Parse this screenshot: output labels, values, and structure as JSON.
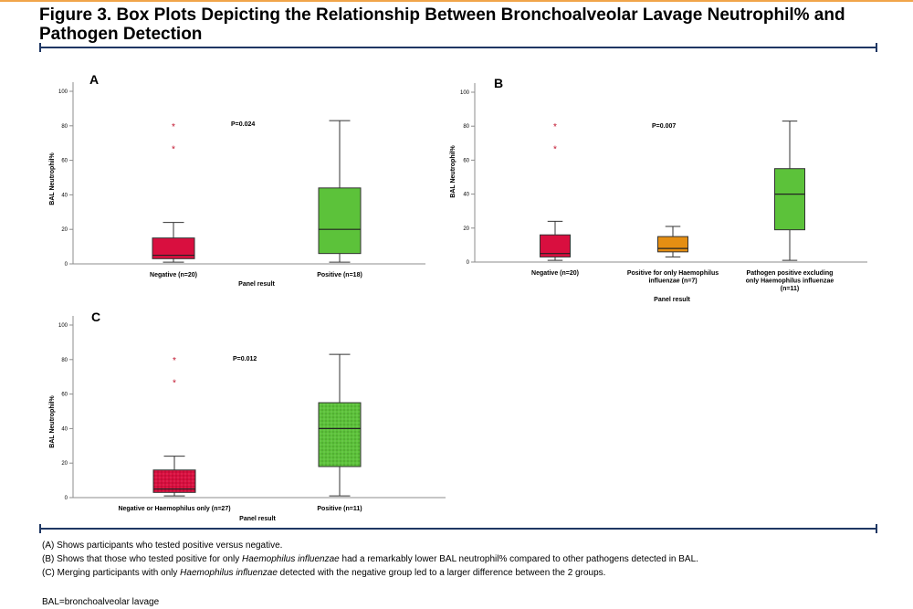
{
  "figure": {
    "title": "Figure 3. Box Plots Depicting the Relationship Between Bronchoalveolar Lavage Neutrophil% and Pathogen Detection"
  },
  "colors": {
    "accent_rule": "#f1a54a",
    "navy_rule": "#1f3763",
    "negative_box": "#d90f3f",
    "hi_only_box": "#e58e12",
    "positive_box": "#5cc23a",
    "outlier": "#c0102a"
  },
  "chart_data": [
    {
      "panel": "A",
      "type": "box",
      "ylabel": "BAL Neutrophil%",
      "xlabel": "Panel result",
      "ylim": [
        0,
        100
      ],
      "yticks": [
        0,
        20,
        40,
        60,
        80,
        100
      ],
      "annotation": "P=0.024",
      "categories": [
        "Negative (n=20)",
        "Positive (n=18)"
      ],
      "boxes": [
        {
          "min": 1,
          "q1": 3,
          "median": 5,
          "q3": 15,
          "max": 24,
          "outliers": [
            67,
            80
          ],
          "color": "#d90f3f",
          "hatched": false
        },
        {
          "min": 1,
          "q1": 6,
          "median": 20,
          "q3": 44,
          "max": 83,
          "outliers": [],
          "color": "#5cc23a",
          "hatched": false
        }
      ]
    },
    {
      "panel": "B",
      "type": "box",
      "ylabel": "BAL Neutrophil%",
      "xlabel": "Panel result",
      "ylim": [
        0,
        100
      ],
      "yticks": [
        0,
        20,
        40,
        60,
        80,
        100
      ],
      "annotation": "P=0.007",
      "categories": [
        "Negative (n=20)",
        "Positive for only Haemophilus influenzae (n=7)",
        "Pathogen positive excluding only Haemophilus influenzae (n=11)"
      ],
      "category_lines": [
        [
          "Negative (n=20)"
        ],
        [
          "Positive for only Haemophilus",
          "influenzae (n=7)"
        ],
        [
          "Pathogen positive excluding",
          "only Haemophilus influenzae",
          "(n=11)"
        ]
      ],
      "boxes": [
        {
          "min": 1,
          "q1": 3,
          "median": 5,
          "q3": 16,
          "max": 24,
          "outliers": [
            67,
            80
          ],
          "color": "#d90f3f",
          "hatched": false
        },
        {
          "min": 3,
          "q1": 6,
          "median": 8,
          "q3": 15,
          "max": 21,
          "outliers": [],
          "color": "#e58e12",
          "hatched": false
        },
        {
          "min": 1,
          "q1": 19,
          "median": 40,
          "q3": 55,
          "max": 83,
          "outliers": [],
          "color": "#5cc23a",
          "hatched": false
        }
      ]
    },
    {
      "panel": "C",
      "type": "box",
      "ylabel": "BAL Neutrophil%",
      "xlabel": "Panel result",
      "ylim": [
        0,
        100
      ],
      "yticks": [
        0,
        20,
        40,
        60,
        80,
        100
      ],
      "annotation": "P=0.012",
      "categories": [
        "Negative or Haemophilus only (n=27)",
        "Positive (n=11)"
      ],
      "boxes": [
        {
          "min": 1,
          "q1": 3,
          "median": 5,
          "q3": 16,
          "max": 24,
          "outliers": [
            67,
            80
          ],
          "color": "#d90f3f",
          "hatched": true
        },
        {
          "min": 1,
          "q1": 18,
          "median": 40,
          "q3": 55,
          "max": 83,
          "outliers": [],
          "color": "#5cc23a",
          "hatched": true
        }
      ]
    }
  ],
  "caption": {
    "line_a": "(A) Shows participants who tested positive versus negative.",
    "line_b_pre": "(B) Shows that those who tested positive for only ",
    "line_b_em": "Haemophilus influenzae",
    "line_b_post": " had a remarkably lower BAL neutrophil% compared to other pathogens detected in BAL.",
    "line_c_pre": "(C) Merging participants with only ",
    "line_c_em": "Haemophilus influenzae",
    "line_c_post": " detected with the negative group led to a larger difference between the 2 groups.",
    "abbreviation": "BAL=bronchoalveolar lavage"
  }
}
